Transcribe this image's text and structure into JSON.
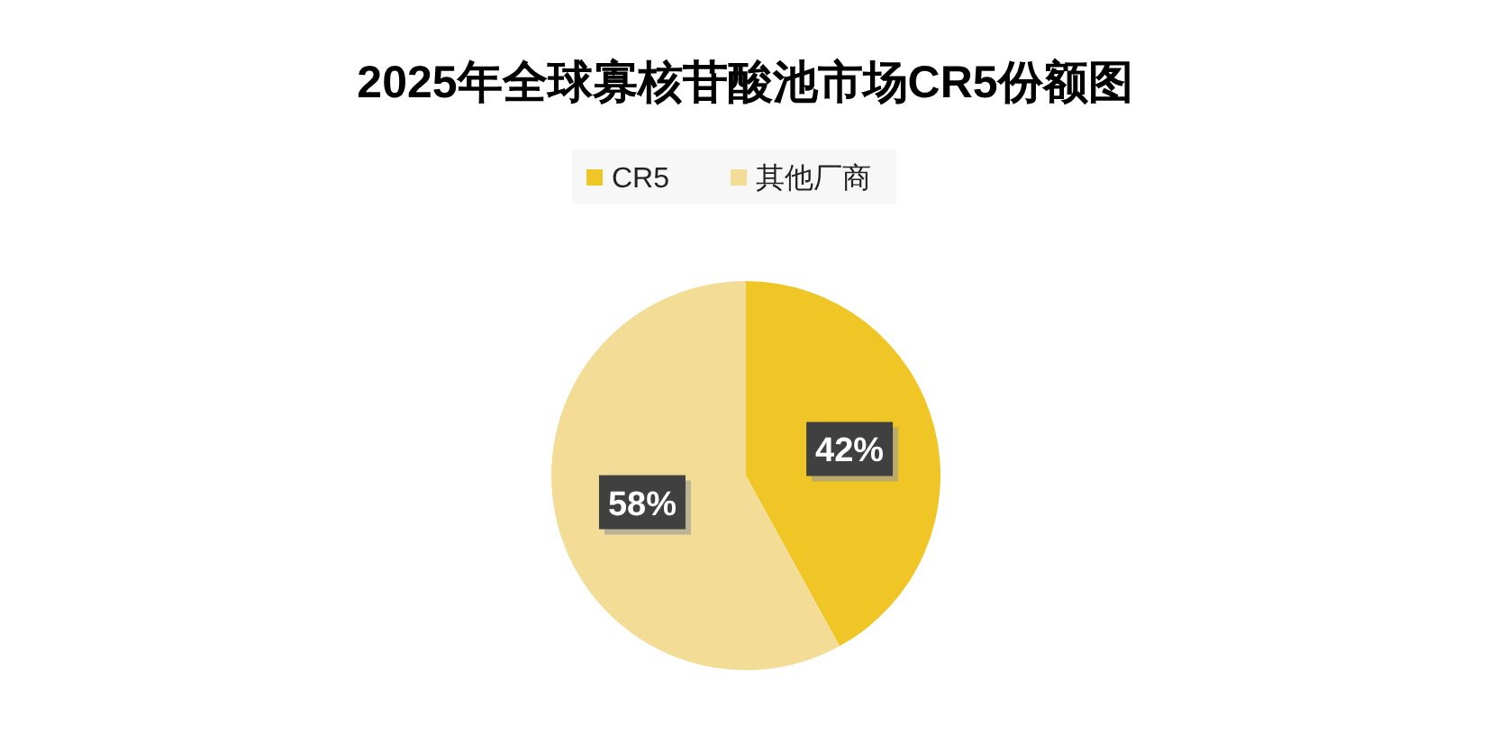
{
  "chart_data": {
    "type": "pie",
    "title": "2025年全球寡核苷酸池市场CR5份额图",
    "categories": [
      "CR5",
      "其他厂商"
    ],
    "values": [
      42,
      58
    ],
    "colors": [
      "#efc625",
      "#f2dc96"
    ],
    "legend": "top",
    "value_labels": [
      "42%",
      "58%"
    ]
  }
}
